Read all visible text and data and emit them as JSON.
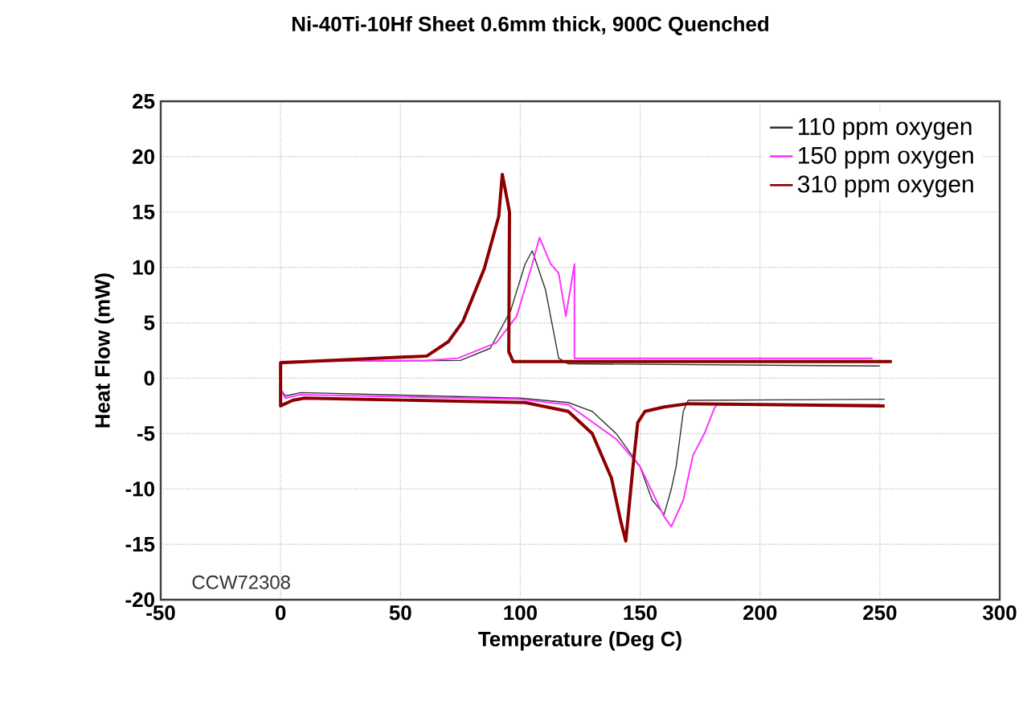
{
  "chart_data": {
    "type": "line",
    "title": "Ni-40Ti-10Hf  Sheet 0.6mm thick, 900C Quenched",
    "xlabel": "Temperature (Deg C)",
    "ylabel": "Heat Flow (mW)",
    "xlim": [
      -50,
      300
    ],
    "ylim": [
      -20,
      25
    ],
    "xticks": [
      -50,
      0,
      50,
      100,
      150,
      200,
      250,
      300
    ],
    "yticks": [
      -20,
      -15,
      -10,
      -5,
      0,
      5,
      10,
      15,
      20,
      25
    ],
    "grid": true,
    "legend": "top right",
    "annotations": [
      "CCW72308"
    ],
    "series": [
      {
        "name": "110 ppm oxygen",
        "color": "#333333",
        "x": [
          252,
          170,
          168,
          165,
          163,
          160,
          155,
          150,
          140,
          130,
          120,
          100,
          8.5,
          2,
          0,
          0,
          75,
          87.5,
          96,
          102,
          105,
          110.5,
          116,
          120,
          250
        ],
        "values": [
          -1.9,
          -2,
          -3,
          -8,
          -10,
          -12.3,
          -11,
          -8,
          -5,
          -3,
          -2.2,
          -1.8,
          -1.3,
          -1.6,
          -1,
          1.5,
          1.6,
          2.7,
          6.1,
          10.3,
          11.5,
          8,
          1.8,
          1.3,
          1.1
        ]
      },
      {
        "name": "150 ppm oxygen",
        "color": "#ff33ff",
        "x": [
          250,
          182,
          181,
          177,
          172,
          168,
          163,
          160,
          150,
          140,
          120,
          100,
          8,
          2,
          0,
          0,
          60,
          74,
          90,
          98.5,
          105,
          108,
          112.7,
          116,
          119,
          122.6,
          122.6,
          247
        ],
        "values": [
          -2.4,
          -2.4,
          -2.7,
          -4.9,
          -7,
          -11,
          -13.4,
          -12.5,
          -8,
          -5.5,
          -2.4,
          -1.9,
          -1.5,
          -1.8,
          -1,
          1.5,
          1.6,
          1.8,
          3.2,
          5.6,
          10.3,
          12.7,
          10.3,
          9.5,
          5.6,
          10.3,
          1.8,
          1.8
        ]
      },
      {
        "name": "310 ppm oxygen",
        "color": "#8b0000",
        "x": [
          252,
          170,
          160,
          152,
          149,
          147,
          144,
          142,
          138,
          130,
          120,
          102,
          10,
          5,
          0,
          0,
          61,
          70,
          76,
          85,
          91,
          92.5,
          95.5,
          95.2,
          97,
          255
        ],
        "values": [
          -2.5,
          -2.3,
          -2.6,
          -3,
          -4,
          -8,
          -14.7,
          -13,
          -9,
          -5,
          -3,
          -2.2,
          -1.8,
          -2,
          -2.5,
          1.4,
          2,
          3.3,
          5.1,
          9.9,
          14.6,
          18.4,
          15,
          2.4,
          1.5,
          1.5
        ]
      }
    ]
  }
}
